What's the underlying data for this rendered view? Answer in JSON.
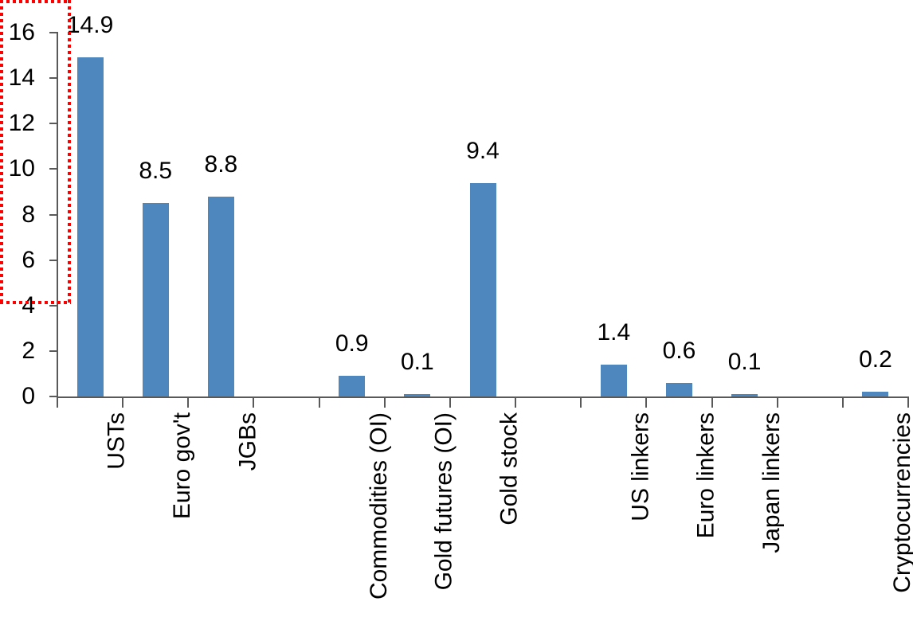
{
  "chart_data": {
    "type": "bar",
    "title": "",
    "xlabel": "",
    "ylabel": "",
    "categories": [
      "USTs",
      "Euro gov't",
      "JGBs",
      "Commodities (OI)",
      "Gold futures (OI)",
      "Gold stock",
      "US linkers",
      "Euro linkers",
      "Japan linkers",
      "Cryptocurrencies"
    ],
    "values": [
      14.9,
      8.5,
      8.8,
      0.9,
      0.1,
      9.4,
      1.4,
      0.6,
      0.1,
      0.2
    ],
    "data_labels": [
      "14.9",
      "8.5",
      "8.8",
      "0.9",
      "0.1",
      "9.4",
      "1.4",
      "0.6",
      "0.1",
      "0.2"
    ],
    "slots": [
      0,
      1,
      2,
      4,
      5,
      6,
      8,
      9,
      10,
      12
    ],
    "n_slots": 13,
    "group_gaps_after": [
      "JGBs",
      "Gold stock",
      "Japan linkers"
    ],
    "ylim": [
      0,
      16
    ],
    "yticks": [
      0,
      2,
      4,
      6,
      8,
      10,
      12,
      14,
      16
    ],
    "grid": false,
    "legend": null,
    "bar_color": "#4D87BE",
    "axis_color": "#595959",
    "text_color": "#000000",
    "highlight": {
      "category": "Cryptocurrencies",
      "box_color": "#FF0000",
      "box_style": "dotted"
    }
  }
}
